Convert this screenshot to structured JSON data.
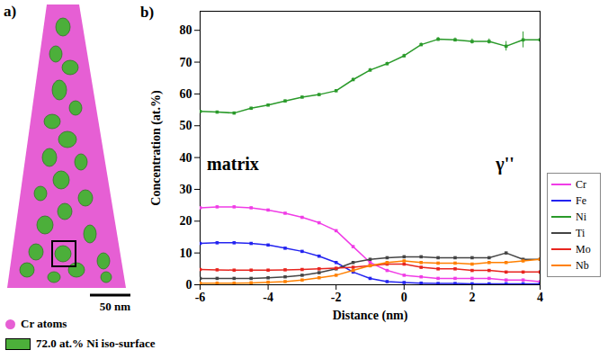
{
  "panel_a": {
    "label": "a)",
    "scale_bar": "50 nm",
    "legend": [
      {
        "marker": "dot",
        "label": "Cr atoms",
        "color": "#e65fd4"
      },
      {
        "marker": "square",
        "label": "72.0 at.% Ni iso-surface",
        "color": "#4caf3a"
      }
    ]
  },
  "chart_data": {
    "type": "line",
    "panel_label": "b)",
    "x_label": "Distance (nm)",
    "y_label": "Concentration (at.%)",
    "x": [
      -6,
      -5.5,
      -5,
      -4.5,
      -4,
      -3.5,
      -3,
      -2.5,
      -2,
      -1.5,
      -1,
      -0.5,
      0,
      0.5,
      1,
      1.5,
      2,
      2.5,
      3,
      3.5,
      4
    ],
    "series": [
      {
        "name": "Cr",
        "color": "#f03ce6",
        "values": [
          24.2,
          24.5,
          24.5,
          24.2,
          23.5,
          22.5,
          21.2,
          19.5,
          17,
          12,
          7,
          4.5,
          3,
          2.5,
          2,
          2,
          2,
          2,
          1.5,
          1.5,
          1
        ]
      },
      {
        "name": "Fe",
        "color": "#2323f0",
        "values": [
          13,
          13.2,
          13.2,
          13,
          12.5,
          11.5,
          10.5,
          9,
          7,
          4,
          2,
          1,
          0.7,
          0.5,
          0.4,
          0.4,
          0.3,
          0.3,
          0.3,
          0.3,
          0.3
        ]
      },
      {
        "name": "Ni",
        "color": "#2a9a2a",
        "values": [
          54.5,
          54.3,
          54,
          55.5,
          56.5,
          57.8,
          59,
          59.8,
          61,
          64.5,
          67.5,
          69.5,
          72,
          75.5,
          77.2,
          77,
          76.5,
          76.5,
          75,
          77,
          77
        ],
        "errors": [
          0.3,
          0.3,
          0.3,
          0.3,
          0.3,
          0.3,
          0.3,
          0.3,
          0.3,
          0.5,
          0.5,
          0.5,
          0.5,
          0.5,
          0.6,
          0.6,
          0.8,
          0.8,
          1.5,
          2.5,
          3
        ]
      },
      {
        "name": "Ti",
        "color": "#444444",
        "values": [
          2,
          2,
          2,
          2,
          2.2,
          2.5,
          3,
          3.8,
          5,
          7,
          8,
          8.5,
          8.8,
          8.8,
          8.5,
          8.5,
          8.5,
          8.5,
          10,
          8,
          8
        ]
      },
      {
        "name": "Mo",
        "color": "#e8251f",
        "values": [
          4.8,
          4.7,
          4.6,
          4.6,
          4.6,
          4.7,
          4.8,
          5,
          5.2,
          5.5,
          6,
          6.5,
          6.5,
          5.5,
          5,
          5,
          4.5,
          4.5,
          4,
          4,
          4
        ]
      },
      {
        "name": "Nb",
        "color": "#ff8000",
        "values": [
          0.5,
          0.5,
          0.5,
          0.6,
          0.8,
          1,
          1.5,
          2.2,
          3,
          4.5,
          6,
          7,
          7.5,
          7,
          6.8,
          6.8,
          6.5,
          7,
          7,
          7.5,
          8
        ]
      }
    ],
    "annotations": [
      {
        "text": "matrix",
        "x": -5.8,
        "y": 38
      },
      {
        "text": "γ''",
        "x": 2.7,
        "y": 38
      }
    ],
    "xlim": [
      -6,
      4
    ],
    "xticks": [
      -6,
      -4,
      -2,
      0,
      2,
      4
    ],
    "ylim": [
      0,
      86
    ],
    "yticks": [
      0,
      10,
      20,
      30,
      40,
      50,
      60,
      70,
      80
    ],
    "marker": "square",
    "legend": "right",
    "grid": false
  }
}
